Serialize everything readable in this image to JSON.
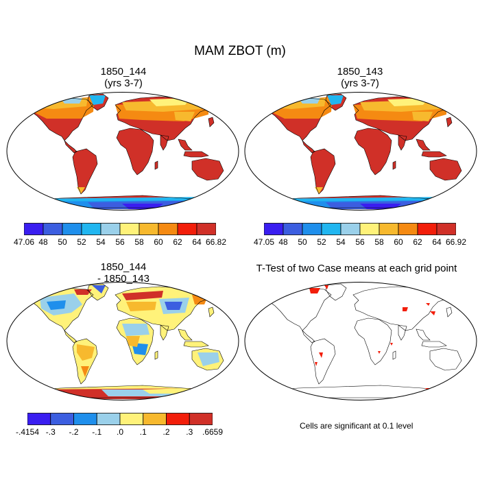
{
  "title": "MAM ZBOT (m)",
  "panels": [
    {
      "title_line1": "1850_144",
      "title_line2": "(yrs 3-7)",
      "colorbar": {
        "colors": [
          "#3a1ef0",
          "#3c5ee0",
          "#1f8fec",
          "#21b6f0",
          "#9ad0ea",
          "#fff27a",
          "#f7b92e",
          "#f58a12",
          "#f21e0a",
          "#d03028"
        ],
        "labels": [
          "47.06",
          "48",
          "50",
          "52",
          "54",
          "56",
          "58",
          "60",
          "62",
          "64",
          "66.82"
        ]
      }
    },
    {
      "title_line1": "1850_143",
      "title_line2": "(yrs 3-7)",
      "colorbar": {
        "colors": [
          "#3a1ef0",
          "#3c5ee0",
          "#1f8fec",
          "#21b6f0",
          "#9ad0ea",
          "#fff27a",
          "#f7b92e",
          "#f58a12",
          "#f21e0a",
          "#d03028"
        ],
        "labels": [
          "47.05",
          "48",
          "50",
          "52",
          "54",
          "56",
          "58",
          "60",
          "62",
          "64",
          "66.92"
        ]
      }
    },
    {
      "title_line1": "1850_144",
      "title_line2": "- 1850_143",
      "colorbar": {
        "colors": [
          "#3a1ef0",
          "#3c5ee0",
          "#1f8fec",
          "#9ad0ea",
          "#fff27a",
          "#f7b92e",
          "#f21e0a",
          "#d03028"
        ],
        "labels": [
          "-.4154",
          "-.3",
          "-.2",
          "-.1",
          ".0",
          ".1",
          ".2",
          ".3",
          ".6659"
        ]
      }
    },
    {
      "title_line1": "T-Test of two Case means at each grid point",
      "note": "Cells are significant at 0.1 level"
    }
  ]
}
